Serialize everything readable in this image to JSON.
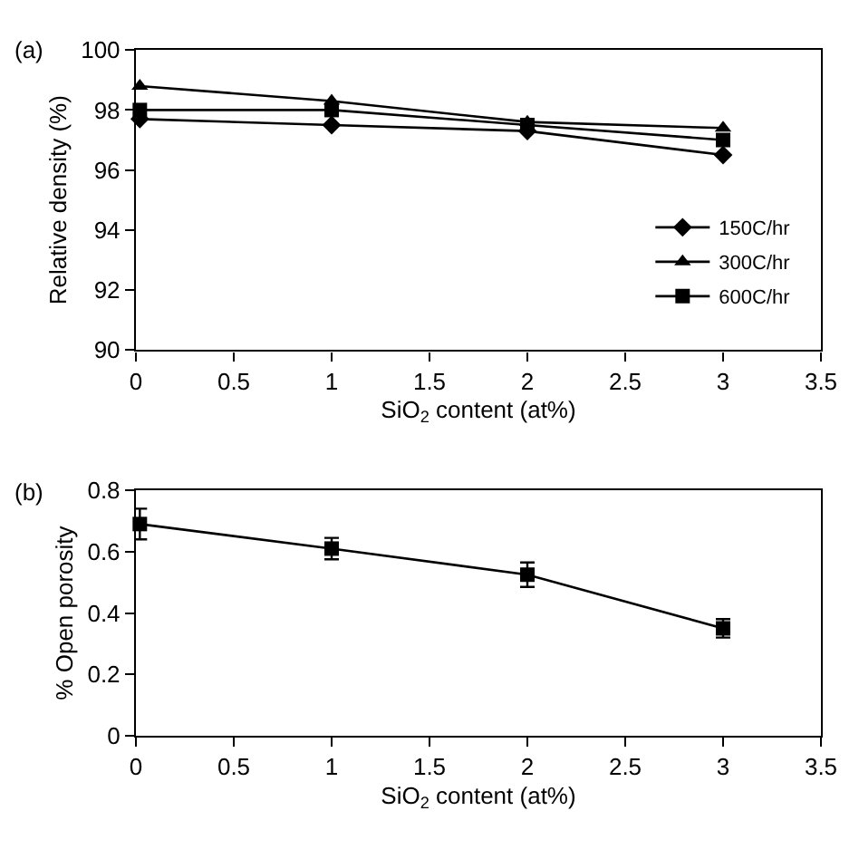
{
  "chart_data": [
    {
      "type": "line",
      "title": "(a)",
      "xlabel": "SiO$_{2}$ content (at%)",
      "ylabel": "Relative density (%)",
      "x": [
        0.02,
        1,
        2,
        3
      ],
      "series": [
        {
          "name": "150C/hr",
          "color": "#000000",
          "marker": "diamond",
          "values": [
            97.7,
            97.5,
            97.3,
            96.5
          ]
        },
        {
          "name": "300C/hr",
          "color": "#000000",
          "marker": "triangle",
          "values": [
            98.8,
            98.3,
            97.6,
            97.4
          ]
        },
        {
          "name": "600C/hr",
          "color": "#000000",
          "marker": "square",
          "values": [
            98.0,
            98.0,
            97.5,
            97.0
          ]
        }
      ],
      "xlim": [
        0,
        3.5
      ],
      "xticks": [
        0,
        0.5,
        1,
        1.5,
        2,
        2.5,
        3,
        3.5
      ],
      "ylim": [
        90,
        100
      ],
      "yticks": [
        90,
        92,
        94,
        96,
        98,
        100
      ],
      "legend": "bottom right",
      "line_style": "solid"
    },
    {
      "type": "line",
      "title": "(b)",
      "xlabel": "SiO$_{2}$ content (at%)",
      "ylabel": "% Open porosity",
      "x": [
        0.02,
        1,
        2,
        3
      ],
      "series": [
        {
          "color": "#000000",
          "values": [
            0.69,
            0.61,
            0.525,
            0.35
          ],
          "errors": [
            0.05,
            0.035,
            0.04,
            0.03
          ]
        }
      ],
      "marker": "square",
      "xlim": [
        0,
        3.5
      ],
      "xticks": [
        0,
        0.5,
        1,
        1.5,
        2,
        2.5,
        3,
        3.5
      ],
      "ylim": [
        0,
        0.8
      ],
      "yticks": [
        0,
        0.2,
        0.4,
        0.6,
        0.8
      ],
      "legend": false,
      "line_style": "solid"
    }
  ]
}
